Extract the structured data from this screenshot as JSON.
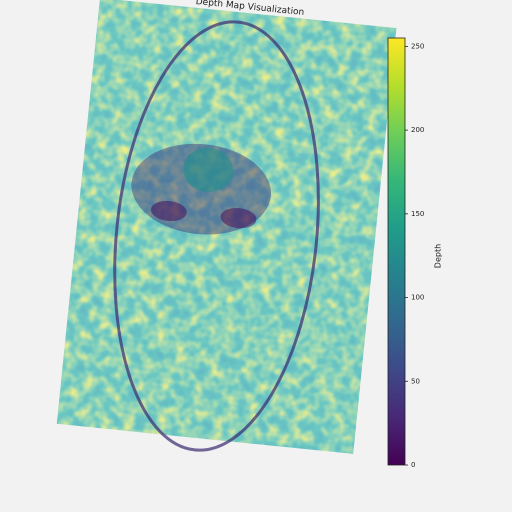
{
  "chart_data": {
    "type": "image",
    "title": "Depth Map Visualization",
    "cmap": "viridis",
    "colorbar": {
      "label": "Depth",
      "clim": [
        0,
        255
      ],
      "ticks": [
        0,
        50,
        100,
        150,
        200,
        250
      ]
    }
  }
}
